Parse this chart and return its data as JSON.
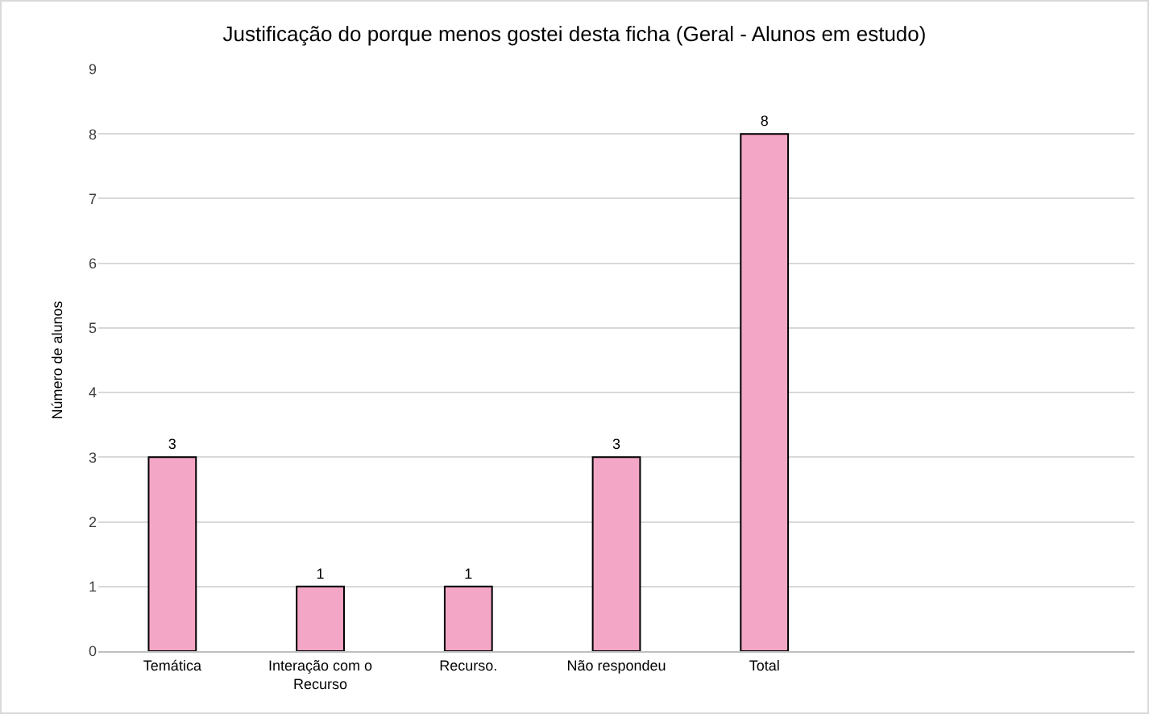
{
  "chart_data": {
    "type": "bar",
    "title": "Justificação do porque menos gostei desta ficha (Geral - Alunos em estudo)",
    "ylabel": "Número de alunos",
    "categories": [
      "Temática",
      "Interação com o Recurso",
      "Recurso.",
      "Não respondeu",
      "Total",
      null,
      null
    ],
    "values": [
      3,
      1,
      1,
      3,
      8,
      null,
      null
    ],
    "color": "#f4a6c6",
    "ylim": [
      0,
      9
    ],
    "yticks": [
      0,
      1,
      2,
      3,
      4,
      5,
      6,
      7,
      8,
      9
    ],
    "grid": "y",
    "data_labels": true,
    "legend": false
  }
}
